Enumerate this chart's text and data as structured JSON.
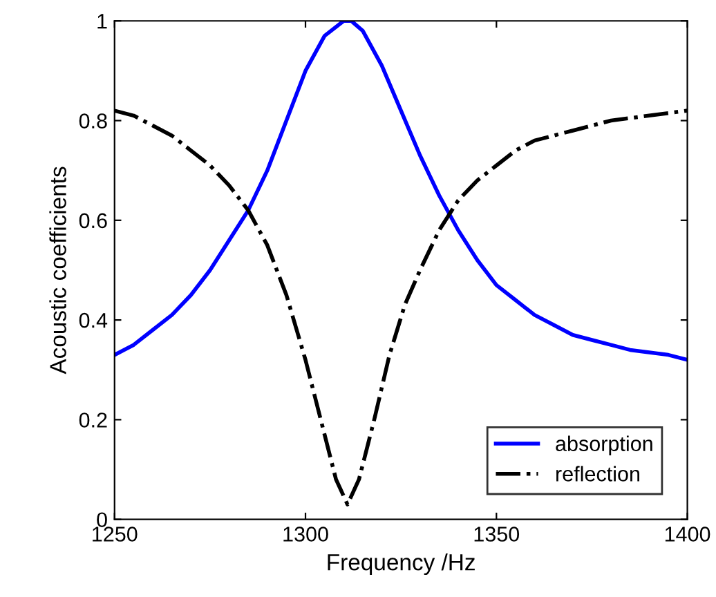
{
  "chart_data": {
    "type": "line",
    "xlabel": "Frequency /Hz",
    "ylabel": "Acoustic coefficients",
    "xlim": [
      1250,
      1400
    ],
    "xticks": [
      1250,
      1300,
      1350,
      1400
    ],
    "ylim": [
      0,
      1
    ],
    "yticks": [
      0,
      0.2,
      0.4,
      0.6,
      0.8,
      1
    ],
    "grid": false,
    "legend": "bottom right",
    "series": [
      {
        "name": "absorption",
        "color": "#0000ff",
        "line_style": "solid",
        "x": [
          1250,
          1255,
          1260,
          1265,
          1270,
          1275,
          1280,
          1285,
          1290,
          1295,
          1300,
          1305,
          1310,
          1312,
          1315,
          1320,
          1325,
          1330,
          1335,
          1340,
          1345,
          1350,
          1355,
          1360,
          1365,
          1370,
          1375,
          1380,
          1385,
          1390,
          1395,
          1400
        ],
        "values": [
          0.33,
          0.35,
          0.38,
          0.41,
          0.45,
          0.5,
          0.56,
          0.62,
          0.7,
          0.8,
          0.9,
          0.97,
          1.0,
          1.0,
          0.98,
          0.91,
          0.82,
          0.73,
          0.65,
          0.58,
          0.52,
          0.47,
          0.44,
          0.41,
          0.39,
          0.37,
          0.36,
          0.35,
          0.34,
          0.335,
          0.33,
          0.32
        ]
      },
      {
        "name": "reflection",
        "color": "#000000",
        "line_style": "dashdot",
        "x": [
          1250,
          1255,
          1260,
          1265,
          1270,
          1275,
          1280,
          1285,
          1290,
          1295,
          1300,
          1305,
          1308,
          1311,
          1314,
          1318,
          1322,
          1326,
          1330,
          1335,
          1340,
          1345,
          1350,
          1355,
          1360,
          1365,
          1370,
          1375,
          1380,
          1385,
          1390,
          1395,
          1400
        ],
        "values": [
          0.82,
          0.81,
          0.79,
          0.77,
          0.74,
          0.71,
          0.67,
          0.62,
          0.55,
          0.45,
          0.32,
          0.17,
          0.08,
          0.03,
          0.08,
          0.2,
          0.33,
          0.43,
          0.5,
          0.58,
          0.64,
          0.68,
          0.71,
          0.74,
          0.76,
          0.77,
          0.78,
          0.79,
          0.8,
          0.805,
          0.81,
          0.815,
          0.82
        ]
      }
    ]
  }
}
